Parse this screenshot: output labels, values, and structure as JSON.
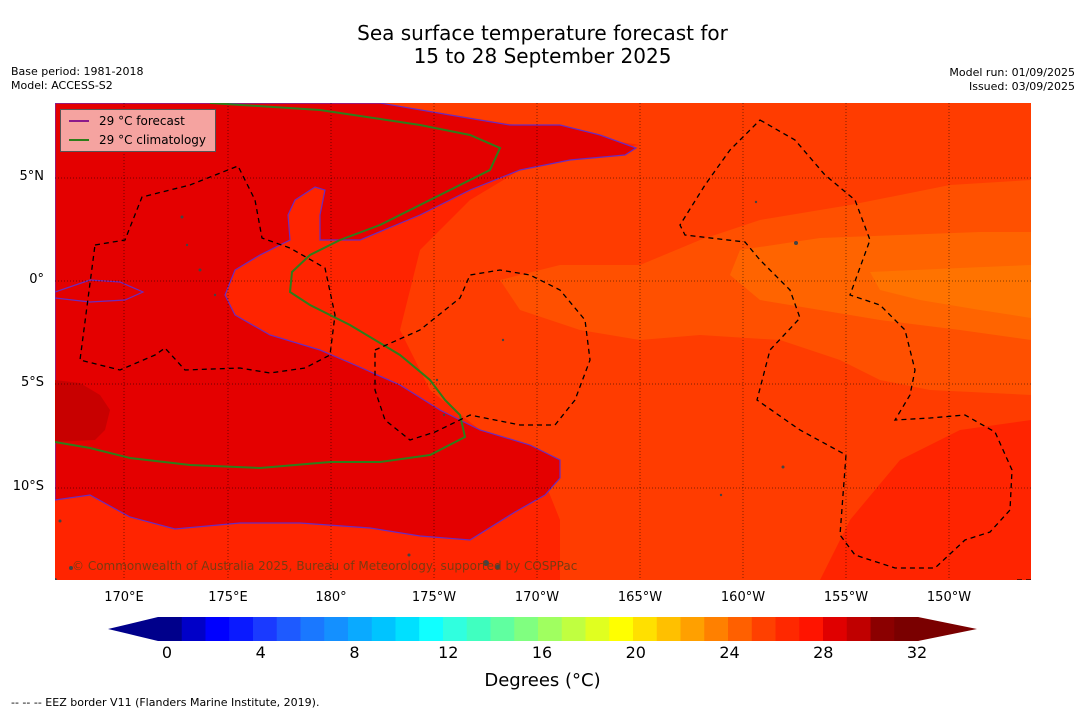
{
  "title_line1": "Sea surface temperature forecast for",
  "title_line2": "15 to 28 September 2025",
  "base_period": "Base period: 1981-2018",
  "model": "Model: ACCESS-S2",
  "model_run": "Model run: 01/09/2025",
  "issued": "Issued: 03/09/2025",
  "legend": {
    "forecast_label": "29 °C  forecast",
    "forecast_color": "#8b1a8b",
    "climatology_label": "29 °C  climatology",
    "climatology_color": "#2e7d1a"
  },
  "lon_labels": [
    "170°E",
    "175°E",
    "180°",
    "175°W",
    "170°W",
    "165°W",
    "160°W",
    "155°W",
    "150°W"
  ],
  "lat_labels": [
    "5°N",
    "0°",
    "5°S",
    "10°S"
  ],
  "copyright": "© Commonwealth of Australia 2025, Bureau of Meteorology, supported by COSPPac",
  "colorbar": {
    "ticks": [
      "0",
      "4",
      "8",
      "12",
      "16",
      "20",
      "24",
      "28",
      "32"
    ],
    "title": "Degrees (°C)",
    "colors": [
      "#00008b",
      "#0000c8",
      "#0000ff",
      "#0a1aff",
      "#1a3aff",
      "#1e5aff",
      "#1a78ff",
      "#1490ff",
      "#0aaaff",
      "#00c4ff",
      "#00e0ff",
      "#10ffff",
      "#30ffdf",
      "#40ffc0",
      "#60ffa0",
      "#80ff80",
      "#a0ff60",
      "#c0ff40",
      "#e0ff20",
      "#ffff00",
      "#ffe000",
      "#ffc000",
      "#ffa000",
      "#ff8000",
      "#ff6000",
      "#ff4000",
      "#ff2800",
      "#ff1400",
      "#e00000",
      "#c00000",
      "#8b0000",
      "#7a0000"
    ]
  },
  "footnote": "--  --  -- EEZ border V11 (Flanders Marine Institute, 2019)."
}
